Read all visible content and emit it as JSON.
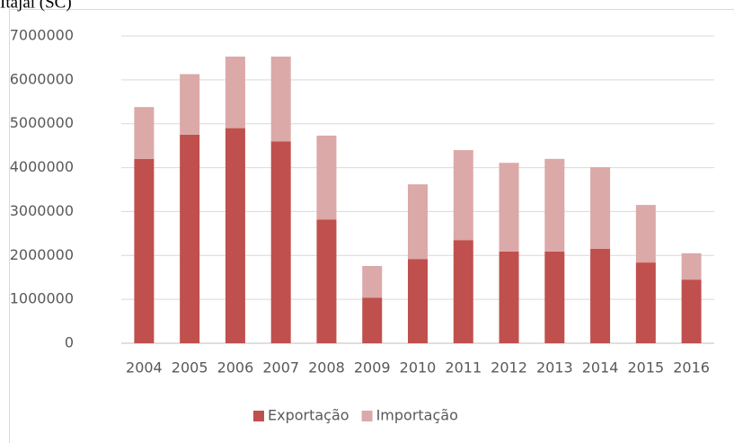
{
  "chart_data": {
    "type": "stacked-bar",
    "title": "Itajaí (SC)",
    "categories": [
      "2004",
      "2005",
      "2006",
      "2007",
      "2008",
      "2009",
      "2010",
      "2011",
      "2012",
      "2013",
      "2014",
      "2015",
      "2016"
    ],
    "series": [
      {
        "name": "Exportação",
        "color": "#c0504d",
        "values": [
          4200000,
          4750000,
          4900000,
          4600000,
          2820000,
          1040000,
          1920000,
          2350000,
          2090000,
          2090000,
          2150000,
          1840000,
          1450000
        ]
      },
      {
        "name": "Importação",
        "color": "#dba9a8",
        "values": [
          1180000,
          1380000,
          1630000,
          1930000,
          1910000,
          720000,
          1700000,
          2050000,
          2020000,
          2110000,
          1860000,
          1310000,
          600000
        ]
      }
    ],
    "ylim": [
      0,
      7000000
    ],
    "yticks": [
      0,
      1000000,
      2000000,
      3000000,
      4000000,
      5000000,
      6000000,
      7000000
    ],
    "grid": true,
    "legend": "bottom"
  }
}
